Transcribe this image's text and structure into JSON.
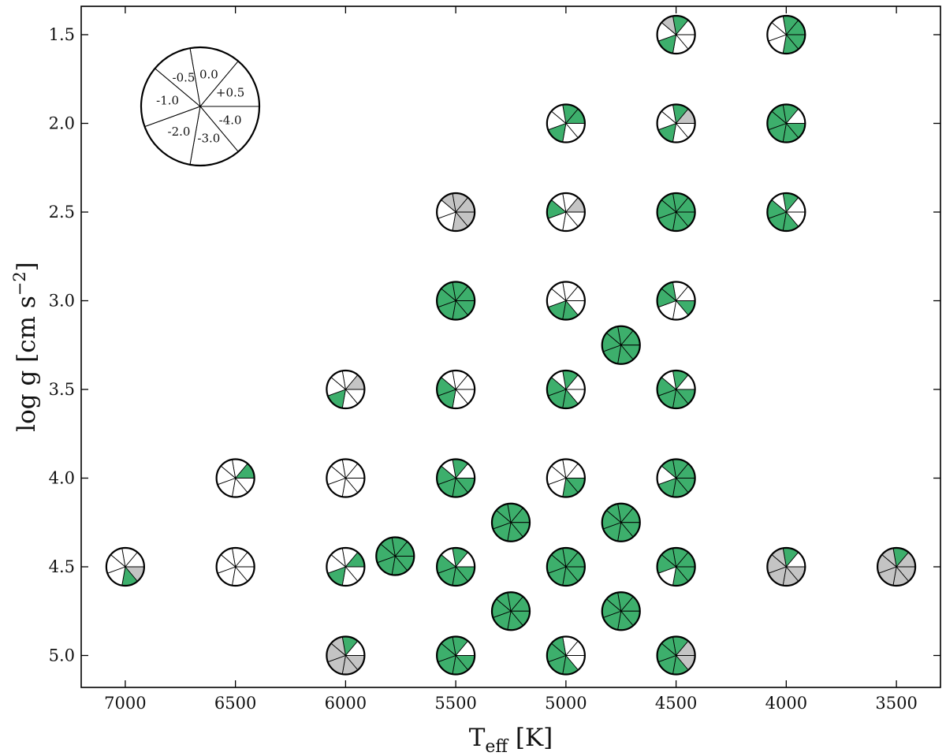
{
  "chart_data": {
    "type": "scatter",
    "xlabel": "T",
    "xlabel_sub": "eff",
    "xlabel_unit": " [K]",
    "ylabel": "log g [cm s",
    "ylabel_sup": "−2",
    "ylabel_close": "]",
    "xlim": [
      7200,
      3300
    ],
    "ylim": [
      5.18,
      1.34
    ],
    "x_ticks": [
      7000,
      6500,
      6000,
      5500,
      5000,
      4500,
      4000,
      3500
    ],
    "y_ticks": [
      "1.5",
      "2.0",
      "2.5",
      "3.0",
      "3.5",
      "4.0",
      "4.5",
      "5.0"
    ],
    "x_reversed": true,
    "y_inverted": true,
    "grid": false,
    "legend_position": "top-left",
    "colors": {
      "green": "#3daf6c",
      "gray": "#c4c4c4",
      "white": "#ffffff",
      "edge": "#000000"
    },
    "key_segments": [
      "0.0",
      "+0.5",
      "-4.0",
      "-3.0",
      "-2.0",
      "-1.0",
      "-0.5"
    ],
    "segment_order_note": "",
    "points": [
      {
        "x": 7000,
        "y": 4.5,
        "segments": [
          "white",
          "white",
          "gray",
          "green",
          "white",
          "white",
          "white"
        ]
      },
      {
        "x": 6500,
        "y": 4.0,
        "segments": [
          "white",
          "green",
          "white",
          "white",
          "white",
          "white",
          "white"
        ]
      },
      {
        "x": 6500,
        "y": 4.5,
        "segments": [
          "white",
          "white",
          "white",
          "white",
          "white",
          "white",
          "white"
        ]
      },
      {
        "x": 6000,
        "y": 3.5,
        "segments": [
          "white",
          "gray",
          "white",
          "white",
          "green",
          "white",
          "white"
        ]
      },
      {
        "x": 6000,
        "y": 4.0,
        "segments": [
          "white",
          "white",
          "white",
          "white",
          "white",
          "white",
          "white"
        ]
      },
      {
        "x": 6000,
        "y": 4.5,
        "segments": [
          "white",
          "green",
          "white",
          "white",
          "green",
          "white",
          "white"
        ]
      },
      {
        "x": 6000,
        "y": 5.0,
        "segments": [
          "green",
          "white",
          "gray",
          "gray",
          "gray",
          "gray",
          "gray"
        ]
      },
      {
        "x": 5775,
        "y": 4.44,
        "segments": [
          "green",
          "green",
          "green",
          "green",
          "green",
          "green",
          "green"
        ]
      },
      {
        "x": 5500,
        "y": 2.5,
        "segments": [
          "gray",
          "gray",
          "gray",
          "gray",
          "white",
          "white",
          "gray"
        ]
      },
      {
        "x": 5500,
        "y": 3.0,
        "segments": [
          "green",
          "green",
          "green",
          "green",
          "green",
          "green",
          "green"
        ]
      },
      {
        "x": 5500,
        "y": 3.5,
        "segments": [
          "white",
          "white",
          "white",
          "white",
          "green",
          "green",
          "white"
        ]
      },
      {
        "x": 5500,
        "y": 4.0,
        "segments": [
          "green",
          "white",
          "green",
          "green",
          "green",
          "green",
          "white"
        ]
      },
      {
        "x": 5500,
        "y": 4.5,
        "segments": [
          "green",
          "white",
          "green",
          "green",
          "green",
          "green",
          "white"
        ]
      },
      {
        "x": 5500,
        "y": 5.0,
        "segments": [
          "green",
          "white",
          "green",
          "green",
          "green",
          "green",
          "green"
        ]
      },
      {
        "x": 5250,
        "y": 4.25,
        "segments": [
          "green",
          "green",
          "green",
          "green",
          "green",
          "green",
          "green"
        ]
      },
      {
        "x": 5250,
        "y": 4.75,
        "segments": [
          "green",
          "green",
          "green",
          "green",
          "green",
          "green",
          "green"
        ]
      },
      {
        "x": 5000,
        "y": 2.0,
        "segments": [
          "green",
          "green",
          "white",
          "white",
          "green",
          "white",
          "white"
        ]
      },
      {
        "x": 5000,
        "y": 2.5,
        "segments": [
          "white",
          "gray",
          "white",
          "white",
          "white",
          "green",
          "white"
        ]
      },
      {
        "x": 5000,
        "y": 3.0,
        "segments": [
          "white",
          "white",
          "white",
          "green",
          "green",
          "white",
          "white"
        ]
      },
      {
        "x": 5000,
        "y": 3.5,
        "segments": [
          "green",
          "white",
          "white",
          "green",
          "green",
          "green",
          "white"
        ]
      },
      {
        "x": 5000,
        "y": 4.0,
        "segments": [
          "white",
          "white",
          "green",
          "green",
          "white",
          "white",
          "white"
        ]
      },
      {
        "x": 5000,
        "y": 4.5,
        "segments": [
          "green",
          "green",
          "green",
          "green",
          "green",
          "green",
          "green"
        ]
      },
      {
        "x": 5000,
        "y": 5.0,
        "segments": [
          "white",
          "white",
          "white",
          "green",
          "green",
          "green",
          "green"
        ]
      },
      {
        "x": 4750,
        "y": 3.25,
        "segments": [
          "green",
          "green",
          "green",
          "green",
          "green",
          "green",
          "green"
        ]
      },
      {
        "x": 4750,
        "y": 4.25,
        "segments": [
          "green",
          "green",
          "green",
          "green",
          "green",
          "green",
          "green"
        ]
      },
      {
        "x": 4750,
        "y": 4.75,
        "segments": [
          "green",
          "green",
          "green",
          "green",
          "green",
          "green",
          "green"
        ]
      },
      {
        "x": 4500,
        "y": 1.5,
        "segments": [
          "green",
          "white",
          "white",
          "white",
          "green",
          "white",
          "gray"
        ]
      },
      {
        "x": 4500,
        "y": 2.0,
        "segments": [
          "green",
          "gray",
          "white",
          "white",
          "green",
          "white",
          "white"
        ]
      },
      {
        "x": 4500,
        "y": 2.5,
        "segments": [
          "green",
          "green",
          "green",
          "green",
          "green",
          "green",
          "green"
        ]
      },
      {
        "x": 4500,
        "y": 3.0,
        "segments": [
          "white",
          "white",
          "green",
          "white",
          "white",
          "green",
          "green"
        ]
      },
      {
        "x": 4500,
        "y": 3.5,
        "segments": [
          "green",
          "white",
          "green",
          "green",
          "green",
          "green",
          "white"
        ]
      },
      {
        "x": 4500,
        "y": 4.0,
        "segments": [
          "green",
          "green",
          "green",
          "green",
          "green",
          "white",
          "green"
        ]
      },
      {
        "x": 4500,
        "y": 4.5,
        "segments": [
          "green",
          "green",
          "green",
          "green",
          "white",
          "green",
          "green"
        ]
      },
      {
        "x": 4500,
        "y": 5.0,
        "segments": [
          "green",
          "gray",
          "gray",
          "green",
          "green",
          "green",
          "green"
        ]
      },
      {
        "x": 4000,
        "y": 1.5,
        "segments": [
          "green",
          "green",
          "green",
          "green",
          "white",
          "white",
          "white"
        ]
      },
      {
        "x": 4000,
        "y": 2.0,
        "segments": [
          "green",
          "white",
          "green",
          "green",
          "green",
          "green",
          "green"
        ]
      },
      {
        "x": 4000,
        "y": 2.5,
        "segments": [
          "green",
          "white",
          "white",
          "green",
          "green",
          "green",
          "white"
        ]
      },
      {
        "x": 4000,
        "y": 4.5,
        "segments": [
          "green",
          "white",
          "gray",
          "gray",
          "gray",
          "gray",
          "gray"
        ]
      },
      {
        "x": 3500,
        "y": 4.5,
        "segments": [
          "green",
          "gray",
          "gray",
          "gray",
          "gray",
          "gray",
          "gray"
        ]
      }
    ]
  }
}
